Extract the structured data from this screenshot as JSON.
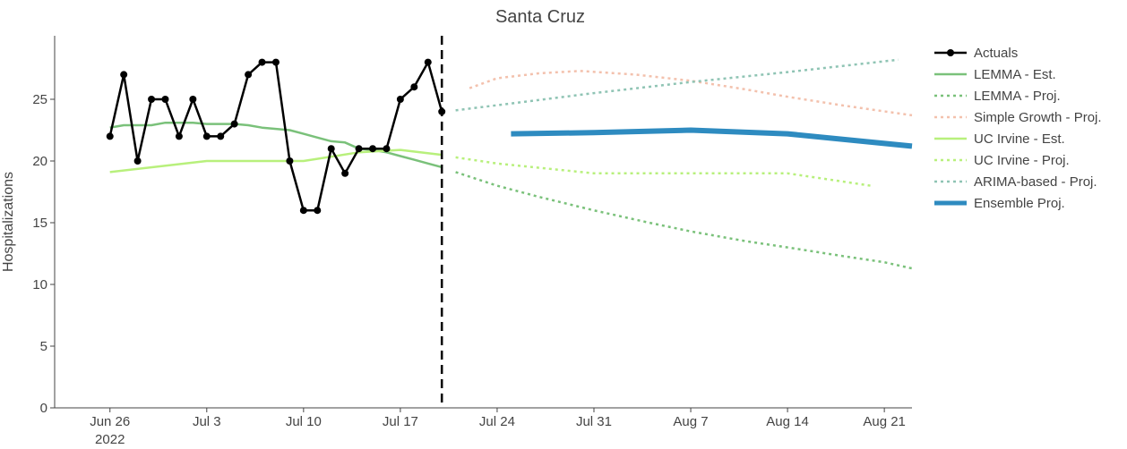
{
  "chart_data": {
    "type": "line",
    "title": "Santa Cruz",
    "ylabel": "Hospitalizations",
    "xlabel": "",
    "xlim": [
      "2022-06-22",
      "2022-08-23"
    ],
    "ylim": [
      0,
      30
    ],
    "y_ticks": [
      0,
      5,
      10,
      15,
      20,
      25
    ],
    "x_ticks": [
      {
        "date": "2022-06-26",
        "label": "Jun 26",
        "sublabel": "2022"
      },
      {
        "date": "2022-07-03",
        "label": "Jul 3",
        "sublabel": ""
      },
      {
        "date": "2022-07-10",
        "label": "Jul 10",
        "sublabel": ""
      },
      {
        "date": "2022-07-17",
        "label": "Jul 17",
        "sublabel": ""
      },
      {
        "date": "2022-07-24",
        "label": "Jul 24",
        "sublabel": ""
      },
      {
        "date": "2022-07-31",
        "label": "Jul 31",
        "sublabel": ""
      },
      {
        "date": "2022-08-07",
        "label": "Aug 7",
        "sublabel": ""
      },
      {
        "date": "2022-08-14",
        "label": "Aug 14",
        "sublabel": ""
      },
      {
        "date": "2022-08-21",
        "label": "Aug 21",
        "sublabel": ""
      }
    ],
    "vline": "2022-07-20",
    "grid": false,
    "legend_position": "right",
    "series": [
      {
        "name": "LEMMA - Est.",
        "color": "#7ac17a",
        "dash": "solid",
        "width": 2.5,
        "markers": false,
        "points": [
          [
            "2022-06-26",
            22.7
          ],
          [
            "2022-06-27",
            22.9
          ],
          [
            "2022-06-28",
            22.9
          ],
          [
            "2022-06-29",
            22.9
          ],
          [
            "2022-06-30",
            23.1
          ],
          [
            "2022-07-01",
            23.1
          ],
          [
            "2022-07-02",
            23.1
          ],
          [
            "2022-07-03",
            23.0
          ],
          [
            "2022-07-04",
            23.0
          ],
          [
            "2022-07-05",
            23.0
          ],
          [
            "2022-07-06",
            22.9
          ],
          [
            "2022-07-07",
            22.7
          ],
          [
            "2022-07-08",
            22.6
          ],
          [
            "2022-07-09",
            22.5
          ],
          [
            "2022-07-10",
            22.2
          ],
          [
            "2022-07-11",
            21.9
          ],
          [
            "2022-07-12",
            21.6
          ],
          [
            "2022-07-13",
            21.5
          ],
          [
            "2022-07-14",
            21.0
          ],
          [
            "2022-07-15",
            20.9
          ],
          [
            "2022-07-16",
            20.7
          ],
          [
            "2022-07-17",
            20.4
          ],
          [
            "2022-07-18",
            20.1
          ],
          [
            "2022-07-19",
            19.8
          ],
          [
            "2022-07-20",
            19.5
          ]
        ]
      },
      {
        "name": "LEMMA - Proj.",
        "color": "#7ac17a",
        "dash": "dot",
        "width": 2.5,
        "markers": false,
        "points": [
          [
            "2022-07-21",
            19.1
          ],
          [
            "2022-07-24",
            18.0
          ],
          [
            "2022-07-27",
            17.1
          ],
          [
            "2022-07-31",
            16.0
          ],
          [
            "2022-08-04",
            15.0
          ],
          [
            "2022-08-07",
            14.3
          ],
          [
            "2022-08-11",
            13.5
          ],
          [
            "2022-08-14",
            13.0
          ],
          [
            "2022-08-18",
            12.3
          ],
          [
            "2022-08-21",
            11.8
          ],
          [
            "2022-08-23",
            11.3
          ]
        ]
      },
      {
        "name": "Simple Growth - Proj.",
        "color": "#f3c1ad",
        "dash": "dot",
        "width": 2.5,
        "markers": false,
        "points": [
          [
            "2022-07-22",
            25.9
          ],
          [
            "2022-07-24",
            26.7
          ],
          [
            "2022-07-27",
            27.1
          ],
          [
            "2022-07-30",
            27.3
          ],
          [
            "2022-08-03",
            27.0
          ],
          [
            "2022-08-07",
            26.5
          ],
          [
            "2022-08-11",
            25.8
          ],
          [
            "2022-08-14",
            25.2
          ],
          [
            "2022-08-18",
            24.5
          ],
          [
            "2022-08-23",
            23.7
          ]
        ]
      },
      {
        "name": "UC Irvine - Est.",
        "color": "#b8f07c",
        "dash": "solid",
        "width": 2.5,
        "markers": false,
        "points": [
          [
            "2022-06-26",
            19.1
          ],
          [
            "2022-07-03",
            20.0
          ],
          [
            "2022-07-10",
            20.0
          ],
          [
            "2022-07-14",
            20.7
          ],
          [
            "2022-07-17",
            20.9
          ],
          [
            "2022-07-20",
            20.5
          ]
        ]
      },
      {
        "name": "UC Irvine - Proj.",
        "color": "#b8f07c",
        "dash": "dot",
        "width": 2.5,
        "markers": false,
        "points": [
          [
            "2022-07-21",
            20.3
          ],
          [
            "2022-07-24",
            19.8
          ],
          [
            "2022-07-31",
            19.0
          ],
          [
            "2022-08-07",
            19.0
          ],
          [
            "2022-08-14",
            19.0
          ],
          [
            "2022-08-20",
            18.0
          ]
        ]
      },
      {
        "name": "ARIMA-based - Proj.",
        "color": "#8fc4b4",
        "dash": "dot",
        "width": 2.5,
        "markers": false,
        "points": [
          [
            "2022-07-21",
            24.1
          ],
          [
            "2022-07-31",
            25.5
          ],
          [
            "2022-08-07",
            26.4
          ],
          [
            "2022-08-14",
            27.2
          ],
          [
            "2022-08-22",
            28.2
          ]
        ]
      },
      {
        "name": "Ensemble Proj.",
        "color": "#2e8bc0",
        "dash": "solid",
        "width": 6,
        "markers": false,
        "points": [
          [
            "2022-07-25",
            22.2
          ],
          [
            "2022-07-31",
            22.3
          ],
          [
            "2022-08-07",
            22.5
          ],
          [
            "2022-08-14",
            22.2
          ],
          [
            "2022-08-23",
            21.2
          ]
        ]
      },
      {
        "name": "Actuals",
        "color": "#000000",
        "dash": "solid",
        "width": 2.5,
        "markers": true,
        "points": [
          [
            "2022-06-26",
            22
          ],
          [
            "2022-06-27",
            27
          ],
          [
            "2022-06-28",
            20
          ],
          [
            "2022-06-29",
            25
          ],
          [
            "2022-06-30",
            25
          ],
          [
            "2022-07-01",
            22
          ],
          [
            "2022-07-02",
            25
          ],
          [
            "2022-07-03",
            22
          ],
          [
            "2022-07-04",
            22
          ],
          [
            "2022-07-05",
            23
          ],
          [
            "2022-07-06",
            27
          ],
          [
            "2022-07-07",
            28
          ],
          [
            "2022-07-08",
            28
          ],
          [
            "2022-07-09",
            20
          ],
          [
            "2022-07-10",
            16
          ],
          [
            "2022-07-11",
            16
          ],
          [
            "2022-07-12",
            21
          ],
          [
            "2022-07-13",
            19
          ],
          [
            "2022-07-14",
            21
          ],
          [
            "2022-07-15",
            21
          ],
          [
            "2022-07-16",
            21
          ],
          [
            "2022-07-17",
            25
          ],
          [
            "2022-07-18",
            26
          ],
          [
            "2022-07-19",
            28
          ],
          [
            "2022-07-20",
            24
          ]
        ]
      }
    ],
    "legend_order": [
      "Actuals",
      "LEMMA - Est.",
      "LEMMA - Proj.",
      "Simple Growth - Proj.",
      "UC Irvine - Est.",
      "UC Irvine - Proj.",
      "ARIMA-based - Proj.",
      "Ensemble Proj."
    ]
  }
}
